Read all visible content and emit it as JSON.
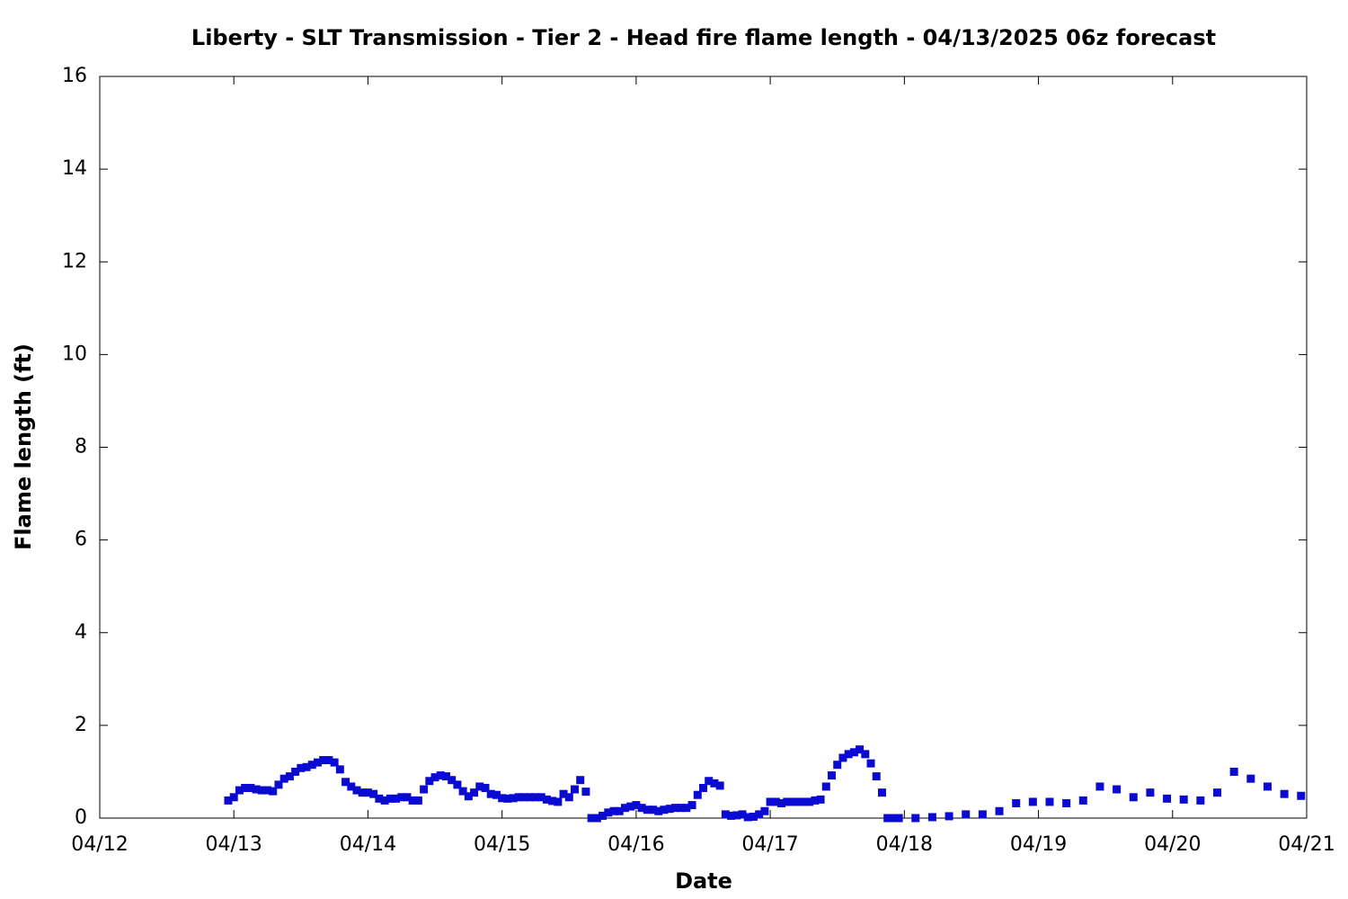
{
  "chart_data": {
    "type": "scatter",
    "title": "Liberty - SLT Transmission - Tier 2 - Head fire flame length - 04/13/2025 06z forecast",
    "xlabel": "Date",
    "ylabel": "Flame length (ft)",
    "xlim": [
      0,
      216
    ],
    "ylim": [
      0,
      16
    ],
    "xticks": [
      {
        "value": 0,
        "label": "04/12"
      },
      {
        "value": 24,
        "label": "04/13"
      },
      {
        "value": 48,
        "label": "04/14"
      },
      {
        "value": 72,
        "label": "04/15"
      },
      {
        "value": 96,
        "label": "04/16"
      },
      {
        "value": 120,
        "label": "04/17"
      },
      {
        "value": 144,
        "label": "04/18"
      },
      {
        "value": 168,
        "label": "04/19"
      },
      {
        "value": 192,
        "label": "04/20"
      },
      {
        "value": 216,
        "label": "04/21"
      }
    ],
    "yticks": [
      0,
      2,
      4,
      6,
      8,
      10,
      12,
      14,
      16
    ],
    "grid": false,
    "color": "#0a0ad2",
    "x": [
      23,
      24,
      25,
      26,
      27,
      28,
      29,
      30,
      31,
      32,
      33,
      34,
      35,
      36,
      37,
      38,
      39,
      40,
      41,
      42,
      43,
      44,
      45,
      46,
      47,
      48,
      49,
      50,
      51,
      52,
      53,
      54,
      55,
      56,
      57,
      58,
      59,
      60,
      61,
      62,
      63,
      64,
      65,
      66,
      67,
      68,
      69,
      70,
      71,
      72,
      73,
      74,
      75,
      76,
      77,
      78,
      79,
      80,
      81,
      82,
      83,
      84,
      85,
      86,
      87,
      88,
      89,
      90,
      91,
      92,
      93,
      94,
      95,
      96,
      97,
      98,
      99,
      100,
      101,
      102,
      103,
      104,
      105,
      106,
      107,
      108,
      109,
      110,
      111,
      112,
      113,
      114,
      115,
      116,
      117,
      118,
      119,
      120,
      121,
      122,
      123,
      124,
      125,
      126,
      127,
      128,
      129,
      130,
      131,
      132,
      133,
      134,
      135,
      136,
      137,
      138,
      139,
      140,
      141,
      142,
      143,
      146,
      149,
      152,
      155,
      158,
      161,
      164,
      167,
      170,
      173,
      176,
      179,
      182,
      185,
      188,
      191,
      194,
      197,
      200,
      203,
      206,
      209,
      212,
      215
    ],
    "values": [
      0.38,
      0.45,
      0.6,
      0.65,
      0.65,
      0.62,
      0.6,
      0.6,
      0.58,
      0.72,
      0.85,
      0.9,
      1.0,
      1.08,
      1.1,
      1.15,
      1.2,
      1.25,
      1.25,
      1.2,
      1.05,
      0.78,
      0.68,
      0.6,
      0.55,
      0.55,
      0.52,
      0.42,
      0.38,
      0.42,
      0.42,
      0.45,
      0.45,
      0.38,
      0.38,
      0.62,
      0.8,
      0.88,
      0.92,
      0.9,
      0.82,
      0.72,
      0.58,
      0.47,
      0.55,
      0.68,
      0.65,
      0.52,
      0.5,
      0.43,
      0.42,
      0.43,
      0.45,
      0.45,
      0.45,
      0.45,
      0.45,
      0.4,
      0.37,
      0.35,
      0.52,
      0.45,
      0.62,
      0.82,
      0.57,
      0,
      0,
      0.05,
      0.12,
      0.15,
      0.15,
      0.22,
      0.25,
      0.28,
      0.22,
      0.18,
      0.18,
      0.15,
      0.18,
      0.2,
      0.22,
      0.22,
      0.22,
      0.28,
      0.5,
      0.65,
      0.8,
      0.75,
      0.7,
      0.08,
      0.05,
      0.06,
      0.08,
      0.02,
      0.03,
      0.08,
      0.15,
      0.35,
      0.35,
      0.32,
      0.35,
      0.35,
      0.35,
      0.35,
      0.35,
      0.38,
      0.4,
      0.68,
      0.92,
      1.15,
      1.3,
      1.38,
      1.42,
      1.48,
      1.38,
      1.18,
      0.9,
      0.55,
      0,
      0,
      0,
      0,
      0.02,
      0.04,
      0.08,
      0.08,
      0.15,
      0.32,
      0.35,
      0.35,
      0.32,
      0.38,
      0.68,
      0.62,
      0.45,
      0.55,
      0.42,
      0.4,
      0.38,
      0.55,
      1.0,
      0.85,
      0.68,
      0.52,
      0.48
    ]
  }
}
